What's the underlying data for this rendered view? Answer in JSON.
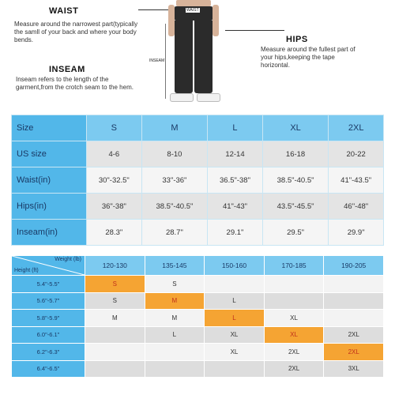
{
  "guide": {
    "waist": {
      "title": "WAIST",
      "text": "Measure around the narrowest part(typically the samll of your back and where your body bends."
    },
    "inseam": {
      "title": "INSEAM",
      "text": "Inseam refers to the length of the garment,from the crotch seam to the hem."
    },
    "hips": {
      "title": "HIPS",
      "text": "Measure around the fullest part of your hips,keeping the tape horizontal."
    },
    "figure_labels": {
      "waist": "WAIST",
      "hips": "HIPS",
      "inseam": "INSEAM"
    }
  },
  "size_table": {
    "header": {
      "label": "Size",
      "sizes": [
        "S",
        "M",
        "L",
        "XL",
        "2XL"
      ]
    },
    "rows": [
      {
        "label": "US size",
        "values": [
          "4-6",
          "8-10",
          "12-14",
          "16-18",
          "20-22"
        ]
      },
      {
        "label": "Waist(in)",
        "values": [
          "30\"-32.5\"",
          "33\"-36\"",
          "36.5\"-38\"",
          "38.5\"-40.5\"",
          "41\"-43.5\""
        ]
      },
      {
        "label": "Hips(in)",
        "values": [
          "36\"-38\"",
          "38.5\"-40.5\"",
          "41\"-43\"",
          "43.5\"-45.5\"",
          "46\"-48\""
        ]
      },
      {
        "label": "Inseam(in)",
        "values": [
          "28.3\"",
          "28.7\"",
          "29.1\"",
          "29.5\"",
          "29.9\""
        ]
      }
    ]
  },
  "hw_chart": {
    "weight_label": "Weight (lb)",
    "height_label": "Height (ft)",
    "weights": [
      "120-130",
      "135-145",
      "150-160",
      "170-185",
      "190-205"
    ],
    "highlight_color": "#f5a433",
    "rows": [
      {
        "height": "5.4\"-5.5\"",
        "cells": [
          "S",
          "S",
          "",
          "",
          ""
        ],
        "highlight": 0
      },
      {
        "height": "5.6\"-5.7\"",
        "cells": [
          "S",
          "M",
          "L",
          "",
          ""
        ],
        "highlight": 1
      },
      {
        "height": "5.8\"-5.9\"",
        "cells": [
          "M",
          "M",
          "L",
          "XL",
          ""
        ],
        "highlight": 2
      },
      {
        "height": "6.0\"-6.1\"",
        "cells": [
          "",
          "L",
          "XL",
          "XL",
          "2XL"
        ],
        "highlight": 3
      },
      {
        "height": "6.2\"-6.3\"",
        "cells": [
          "",
          "",
          "XL",
          "2XL",
          "2XL"
        ],
        "highlight": 4
      },
      {
        "height": "6.4\"-6.5\"",
        "cells": [
          "",
          "",
          "",
          "2XL",
          "3XL"
        ],
        "highlight": -1
      }
    ]
  }
}
